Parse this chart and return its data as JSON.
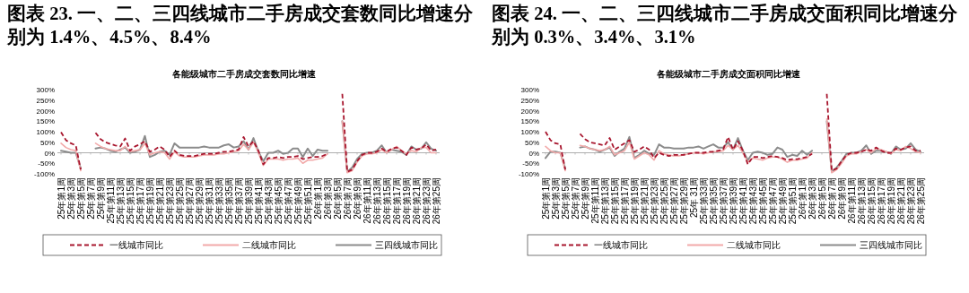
{
  "chart_data": [
    {
      "type": "line",
      "title": "图表 23. 一、二、三四线城市二手房成交套数同比增速分别为 1.4%、4.5%、8.4%",
      "subtitle": "各能级城市二手房成交套数同比增速",
      "categories": [
        "25年第1周",
        null,
        "25年第3周",
        null,
        "25年第5周",
        null,
        "25年第7周",
        null,
        "25年第9周",
        null,
        "25年第11周",
        null,
        "25年第13周",
        null,
        "25年第15周",
        null,
        "25年第17周",
        null,
        "25年第19周",
        null,
        "25年第21周",
        null,
        "25年第23周",
        null,
        "25年第25周",
        null,
        "25年第27周",
        null,
        "25年第29周",
        null,
        "25年第31周",
        null,
        "25年第33周",
        null,
        "25年第35周",
        null,
        "25年第37周",
        null,
        "25年第39周",
        null,
        "25年第41周",
        null,
        "25年第43周",
        null,
        "25年第45周",
        null,
        "25年第47周",
        null,
        "25年第49周",
        null,
        "25年第51周",
        null,
        "26年第1周",
        null,
        "26年第3周",
        null,
        "26年第5周",
        null,
        "26年第7周",
        null,
        "26年第9周",
        null,
        "26年第11周",
        null,
        "26年第13周",
        null,
        "26年第15周",
        null,
        "26年第17周",
        null,
        "26年第19周",
        null,
        "26年第21周",
        null,
        "26年第23周",
        null,
        "26年第25周"
      ],
      "series": [
        {
          "name": "一线城市同比",
          "color": "#a8162e",
          "line_style": "dashed",
          "values": [
            98,
            60,
            45,
            35,
            -80,
            null,
            null,
            95,
            65,
            50,
            42,
            35,
            30,
            68,
            10,
            30,
            40,
            55,
            5,
            15,
            30,
            15,
            -20,
            10,
            -10,
            -15,
            -15,
            -15,
            -10,
            -5,
            -5,
            -5,
            0,
            5,
            5,
            10,
            15,
            75,
            30,
            55,
            10,
            -55,
            -25,
            -25,
            -20,
            -25,
            -20,
            -20,
            -15,
            -30,
            -25,
            -20,
            -20,
            -15,
            -5,
            null,
            null,
            280,
            -90,
            -80,
            -40,
            -10,
            0,
            0,
            5,
            20,
            5,
            20,
            25,
            10,
            -10,
            25,
            15,
            20,
            40,
            10,
            15
          ]
        },
        {
          "name": "二线城市同比",
          "color": "#f2aaaa",
          "line_style": "solid",
          "values": [
            45,
            25,
            15,
            10,
            -85,
            null,
            null,
            45,
            30,
            20,
            15,
            10,
            10,
            30,
            5,
            10,
            15,
            45,
            -10,
            0,
            5,
            0,
            -30,
            5,
            -15,
            -20,
            -20,
            -20,
            -15,
            -10,
            -10,
            -10,
            -5,
            -5,
            0,
            5,
            10,
            40,
            15,
            50,
            0,
            -60,
            -30,
            -30,
            -30,
            -35,
            -30,
            -30,
            -25,
            -50,
            -35,
            -35,
            -30,
            -25,
            -5,
            null,
            null,
            150,
            -95,
            -85,
            -45,
            -15,
            -5,
            -5,
            0,
            15,
            0,
            15,
            30,
            10,
            -5,
            10,
            5,
            25,
            25,
            0,
            0
          ]
        },
        {
          "name": "三四线城市同比",
          "color": "#8c8c8c",
          "line_style": "solid",
          "values": [
            10,
            5,
            0,
            0,
            -75,
            null,
            null,
            20,
            25,
            20,
            10,
            5,
            15,
            25,
            0,
            5,
            15,
            80,
            -20,
            -10,
            5,
            10,
            -10,
            45,
            25,
            25,
            25,
            25,
            25,
            30,
            25,
            25,
            25,
            35,
            40,
            25,
            30,
            55,
            15,
            70,
            5,
            -40,
            0,
            0,
            10,
            -5,
            0,
            20,
            20,
            -20,
            20,
            -15,
            15,
            10,
            10,
            null,
            null,
            150,
            -90,
            -70,
            -30,
            -5,
            0,
            0,
            10,
            35,
            0,
            15,
            10,
            5,
            -10,
            30,
            15,
            20,
            50,
            20,
            10
          ]
        }
      ],
      "ylim": [
        -100,
        300
      ],
      "yticks": [
        {
          "value": -100,
          "label": "-100%"
        },
        {
          "value": -50,
          "label": "-50%"
        },
        {
          "value": 0,
          "label": "0%"
        },
        {
          "value": 50,
          "label": "50%"
        },
        {
          "value": 100,
          "label": "100%"
        },
        {
          "value": 150,
          "label": "150%"
        },
        {
          "value": 200,
          "label": "200%"
        },
        {
          "value": 250,
          "label": "250%"
        },
        {
          "value": 300,
          "label": "300%"
        }
      ],
      "ref_lines": [
        {
          "axis": "y",
          "value": 0,
          "color": "#999999"
        }
      ],
      "grid": false,
      "legend": "bottom",
      "marker": "none"
    },
    {
      "type": "line",
      "title": "图表 24. 一、二、三四线城市二手房成交面积同比增速分别为 0.3%、3.4%、3.1%",
      "subtitle": "各能级城市二手房成交面积同比增速",
      "categories": [
        "25年第1周",
        null,
        "25年第3周",
        null,
        "25年第5周",
        null,
        "25年第7周",
        null,
        "25年第9周",
        null,
        "25年第11周",
        null,
        "25年第13周",
        null,
        "25年第15周",
        null,
        "25年第17周",
        null,
        "25年第19周",
        null,
        "25年第21周",
        null,
        "25年第23周",
        null,
        "25年第25周",
        null,
        "25年第27周",
        null,
        "25年第29周",
        null,
        "25年 31周",
        null,
        "25年第33周",
        null,
        "25年第35周",
        null,
        "25年第37周",
        null,
        "25年第39周",
        null,
        "25年第41周",
        null,
        "25年第43周",
        null,
        "25年第45周",
        null,
        "25年第47周",
        null,
        "25年第49周",
        null,
        "25年第51周",
        null,
        "26年第1周",
        null,
        "26年第3周",
        null,
        "26年第5周",
        null,
        "26年第7周",
        null,
        "26年第9周",
        null,
        "26年第11周",
        null,
        "26年第13周",
        null,
        "26年第15周",
        null,
        "26年第17周",
        null,
        "26年第19周",
        null,
        "26年第21周",
        null,
        "26年第23周",
        null,
        "26年第25周"
      ],
      "series": [
        {
          "name": "一线城市同比",
          "color": "#a8162e",
          "line_style": "dashed",
          "values": [
            100,
            60,
            45,
            40,
            -80,
            null,
            null,
            90,
            65,
            50,
            45,
            40,
            35,
            70,
            15,
            30,
            45,
            60,
            5,
            15,
            30,
            15,
            -25,
            0,
            -10,
            -15,
            -10,
            -10,
            -10,
            -5,
            0,
            0,
            0,
            5,
            5,
            10,
            15,
            75,
            15,
            55,
            10,
            -55,
            -20,
            -20,
            -25,
            -20,
            -15,
            -20,
            -25,
            -35,
            -30,
            -30,
            -25,
            -20,
            -5,
            null,
            null,
            280,
            -85,
            -75,
            -40,
            -10,
            0,
            0,
            5,
            15,
            10,
            25,
            10,
            0,
            0,
            20,
            15,
            25,
            30,
            10,
            10
          ]
        },
        {
          "name": "二线城市同比",
          "color": "#f2aaaa",
          "line_style": "solid",
          "values": [
            30,
            10,
            0,
            0,
            -85,
            null,
            null,
            35,
            30,
            20,
            15,
            10,
            15,
            30,
            -10,
            0,
            10,
            50,
            -30,
            -15,
            0,
            -10,
            -35,
            10,
            -5,
            -10,
            -15,
            -15,
            -10,
            -5,
            0,
            0,
            -5,
            0,
            5,
            5,
            10,
            35,
            15,
            35,
            0,
            -45,
            -25,
            -30,
            -35,
            -25,
            -20,
            -20,
            -30,
            -45,
            -35,
            -35,
            -30,
            -25,
            0,
            null,
            null,
            160,
            -95,
            -80,
            -50,
            -15,
            -5,
            -5,
            5,
            15,
            0,
            20,
            15,
            5,
            -5,
            15,
            10,
            30,
            20,
            5,
            0
          ]
        },
        {
          "name": "三四线城市同比",
          "color": "#8c8c8c",
          "line_style": "solid",
          "values": [
            -25,
            5,
            5,
            0,
            -75,
            null,
            null,
            25,
            30,
            20,
            15,
            5,
            15,
            25,
            -15,
            5,
            20,
            75,
            -25,
            -10,
            10,
            -5,
            -10,
            40,
            25,
            25,
            20,
            20,
            20,
            25,
            25,
            30,
            20,
            30,
            40,
            25,
            25,
            50,
            15,
            70,
            10,
            -35,
            0,
            5,
            0,
            -10,
            -5,
            25,
            15,
            -20,
            -10,
            -15,
            10,
            -10,
            10,
            null,
            null,
            150,
            -90,
            -70,
            -40,
            -5,
            0,
            0,
            10,
            35,
            -5,
            10,
            10,
            5,
            -5,
            30,
            15,
            20,
            45,
            15,
            5
          ]
        }
      ],
      "ylim": [
        -100,
        300
      ],
      "yticks": [
        {
          "value": -100,
          "label": "-100%"
        },
        {
          "value": -50,
          "label": "-50%"
        },
        {
          "value": 0,
          "label": "0%"
        },
        {
          "value": 50,
          "label": "50%"
        },
        {
          "value": 100,
          "label": "100%"
        },
        {
          "value": 150,
          "label": "150%"
        },
        {
          "value": 200,
          "label": "200%"
        },
        {
          "value": 250,
          "label": "250%"
        },
        {
          "value": 300,
          "label": "300%"
        }
      ],
      "ref_lines": [
        {
          "axis": "y",
          "value": 0,
          "color": "#999999"
        }
      ],
      "grid": false,
      "legend": "bottom",
      "marker": "none"
    }
  ]
}
